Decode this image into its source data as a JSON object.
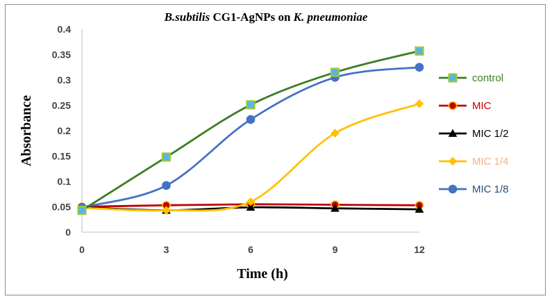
{
  "chart_data": {
    "type": "line",
    "title": {
      "part1": "B.subtilis",
      "part2": " CG1-AgNPs on ",
      "part3": "K. pneumoniae"
    },
    "xlabel": "Time (h)",
    "ylabel": "Absorbance",
    "x": [
      0,
      3,
      6,
      9,
      12
    ],
    "x_ticks": [
      "0",
      "3",
      "6",
      "9",
      "12"
    ],
    "xlim": [
      0,
      12
    ],
    "ylim": [
      0,
      0.4
    ],
    "y_ticks": [
      "0",
      "0.05",
      "0.1",
      "0.15",
      "0.2",
      "0.25",
      "0.3",
      "0.35",
      "0.4"
    ],
    "grid": false,
    "legend_position": "right",
    "series": [
      {
        "name": "control",
        "values": [
          0.043,
          0.148,
          0.251,
          0.315,
          0.357
        ],
        "line_color": "#3a7d22",
        "label_color": "#3a7d22",
        "marker": "square",
        "marker_fill": "#5ab4e6",
        "marker_edge": "#9bc93c"
      },
      {
        "name": "MIC",
        "values": [
          0.05,
          0.053,
          0.055,
          0.054,
          0.053
        ],
        "line_color": "#c00000",
        "label_color": "#c00000",
        "marker": "circle",
        "marker_fill": "#c00000",
        "marker_edge": "#ffc000"
      },
      {
        "name": "MIC 1/2",
        "values": [
          0.049,
          0.043,
          0.049,
          0.047,
          0.045
        ],
        "line_color": "#000000",
        "label_color": "#000000",
        "marker": "triangle",
        "marker_fill": "#000000",
        "marker_edge": "#000000"
      },
      {
        "name": "MIC 1/4",
        "values": [
          0.048,
          0.043,
          0.06,
          0.195,
          0.253
        ],
        "line_color": "#ffc000",
        "label_color": "#f4b183",
        "marker": "diamond",
        "marker_fill": "#ffc000",
        "marker_edge": "#ffc000"
      },
      {
        "name": "MIC 1/8",
        "values": [
          0.049,
          0.092,
          0.222,
          0.305,
          0.325
        ],
        "line_color": "#4472c4",
        "label_color": "#1f4e79",
        "marker": "circle",
        "marker_fill": "#4472c4",
        "marker_edge": "#4472c4"
      }
    ]
  }
}
